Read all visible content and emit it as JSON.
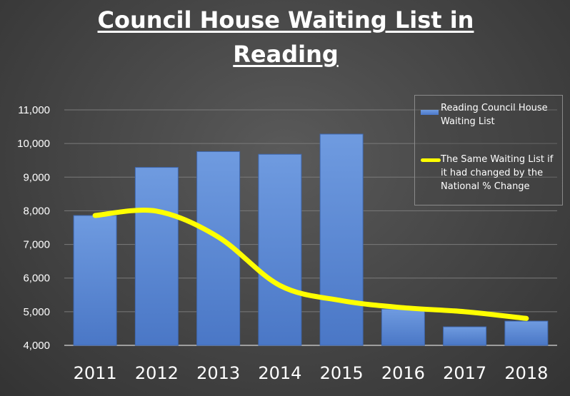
{
  "chart_data": {
    "type": "bar",
    "title": "Council House Waiting List in Reading",
    "xlabel": "",
    "ylabel": "",
    "categories": [
      "2011",
      "2012",
      "2013",
      "2014",
      "2015",
      "2016",
      "2017",
      "2018"
    ],
    "ylim": [
      4000,
      11000
    ],
    "yticks": [
      "4,000",
      "5,000",
      "6,000",
      "7,000",
      "8,000",
      "9,000",
      "10,000",
      "11,000"
    ],
    "grid": true,
    "legend_position": "top-right",
    "series": [
      {
        "name": "Reading Council House Waiting List",
        "type": "bar",
        "color": "#5b8bd6",
        "values": [
          7860,
          9290,
          9760,
          9680,
          10280,
          5080,
          4550,
          4720
        ]
      },
      {
        "name": "The Same Waiting List if it had changed by the National % Change",
        "type": "line",
        "smooth": true,
        "color": "#ffff00",
        "values": [
          7860,
          7990,
          7220,
          5780,
          5330,
          5120,
          5000,
          4800
        ]
      }
    ]
  }
}
